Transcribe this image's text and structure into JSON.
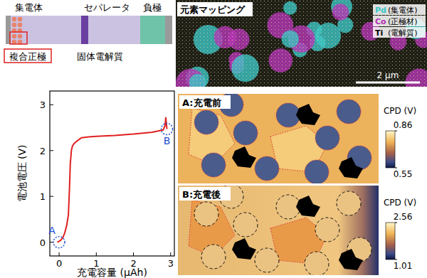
{
  "schematic": {
    "labels": {
      "collector": "集電体",
      "separator": "セパレータ",
      "anode": "負極",
      "composite_cathode": "複合正極",
      "solid_electrolyte": "固体電解質"
    }
  },
  "element_map": {
    "title": "元素マッピング",
    "legend": [
      {
        "element": "Pd",
        "label": "(集電体)",
        "color": "#38c6c6"
      },
      {
        "element": "Co",
        "label": "(正極材)",
        "color": "#b632b6"
      },
      {
        "element": "Ti",
        "label": "(電解質)",
        "color": "#000000"
      }
    ],
    "scale_bar": "2 μm"
  },
  "chart_data": {
    "type": "line",
    "x_label": "充電容量 (μAh)",
    "y_label": "電池電圧 (V)",
    "x": [
      -0.05,
      0,
      0.05,
      0.1,
      0.15,
      0.2,
      0.25,
      0.28,
      0.3,
      0.33,
      0.36,
      0.4,
      0.5,
      0.6,
      0.8,
      1.0,
      1.5,
      2.0,
      2.5,
      2.8,
      2.85,
      2.87,
      2.9
    ],
    "series": [
      {
        "color": "#e02020",
        "values": [
          0.0,
          0.02,
          0.05,
          0.1,
          0.2,
          0.35,
          0.6,
          1.2,
          1.7,
          2.0,
          2.1,
          2.15,
          2.22,
          2.28,
          2.3,
          2.31,
          2.33,
          2.36,
          2.4,
          2.45,
          2.55,
          2.72,
          2.47
        ]
      }
    ],
    "xlim": [
      -0.25,
      3.1
    ],
    "ylim": [
      -0.3,
      3.3
    ],
    "xticks": [
      0,
      1,
      2,
      3
    ],
    "yticks": [
      0,
      1,
      2,
      3
    ],
    "annotations": [
      {
        "label": "A",
        "x": 0,
        "y": 0
      },
      {
        "label": "B",
        "x": 2.9,
        "y": 2.47
      }
    ]
  },
  "cpd_maps": [
    {
      "title": "A:充電前",
      "colorbar_label": "CPD (V)",
      "colorbar_range": [
        0.55,
        0.86
      ],
      "colorbar_ticks": [
        0.86,
        0.55
      ]
    },
    {
      "title": "B:充電後",
      "colorbar_label": "CPD (V)",
      "colorbar_range": [
        1.01,
        2.56
      ],
      "colorbar_ticks": [
        2.56,
        1.01
      ]
    }
  ]
}
